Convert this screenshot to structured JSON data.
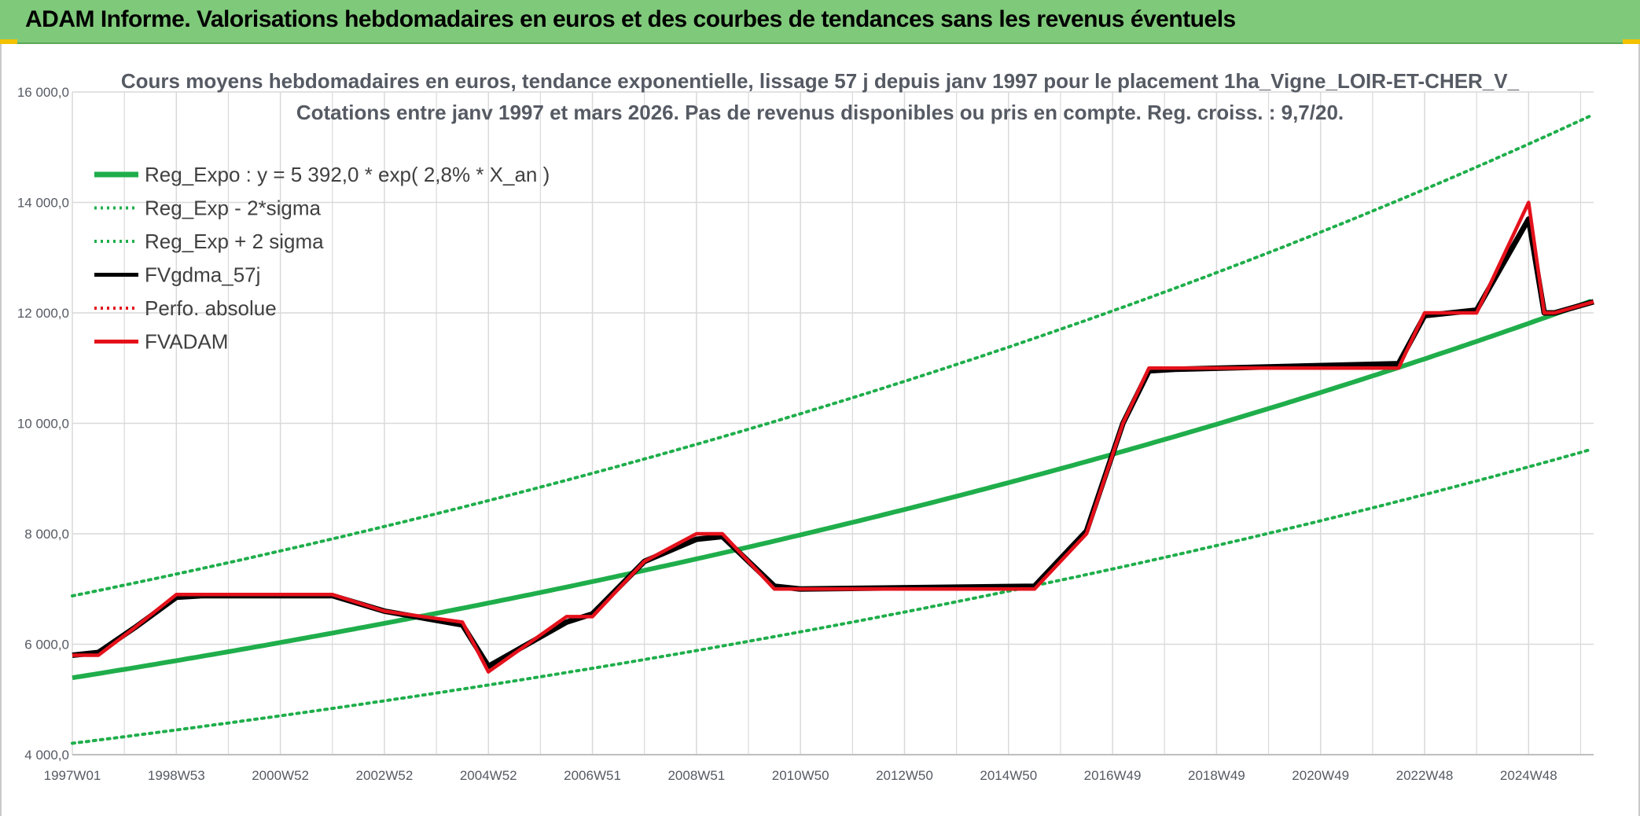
{
  "header": {
    "title": "ADAM Informe. Valorisations hebdomadaires en euros et des courbes de tendances sans les revenus éventuels"
  },
  "colors": {
    "header_bg": "#7fc97a",
    "green": "#1fae4b",
    "black": "#000000",
    "red": "#e4111b",
    "grid": "#d9d9d9",
    "accent": "#f2c100"
  },
  "chart_data": {
    "type": "line",
    "title": [
      "Cours moyens hebdomadaires en euros, tendance exponentielle, lissage 57 j depuis janv 1997 pour le placement 1ha_Vigne_LOIR-ET-CHER_V_",
      "Cotations entre janv 1997 et mars 2026. Pas de revenus disponibles ou pris en compte. Reg. croiss. : 9,7/20."
    ],
    "xlabel": "",
    "ylabel": "",
    "x_range": [
      1997.0,
      2026.25
    ],
    "ylim": [
      4000,
      16000
    ],
    "yticks": [
      4000,
      6000,
      8000,
      10000,
      12000,
      14000,
      16000
    ],
    "ytick_labels": [
      "4 000,0",
      "6 000,0",
      "8 000,0",
      "10 000,0",
      "12 000,0",
      "14 000,0",
      "16 000,0"
    ],
    "xticks": [
      1997.0,
      1999.0,
      2001.0,
      2003.0,
      2005.0,
      2007.0,
      2009.0,
      2011.0,
      2013.0,
      2015.0,
      2017.0,
      2019.0,
      2021.0,
      2023.0,
      2025.0
    ],
    "xtick_labels": [
      "1997W01",
      "1998W53",
      "2000W52",
      "2002W52",
      "2004W52",
      "2006W51",
      "2008W51",
      "2010W50",
      "2012W50",
      "2014W50",
      "2016W49",
      "2018W49",
      "2020W49",
      "2022W48",
      "2024W48"
    ],
    "legend": [
      {
        "key": "reg_expo",
        "label": "Reg_Expo : y = 5 392,0 * exp( 2,8% *  X_an )",
        "color": "#1fae4b",
        "style": "solid"
      },
      {
        "key": "reg_minus",
        "label": "Reg_Exp - 2*sigma",
        "color": "#1fae4b",
        "style": "dotted"
      },
      {
        "key": "reg_plus",
        "label": "Reg_Exp + 2 sigma",
        "color": "#1fae4b",
        "style": "dotted"
      },
      {
        "key": "fvgdma",
        "label": "FVgdma_57j",
        "color": "#000000",
        "style": "solid"
      },
      {
        "key": "perfo",
        "label": "Perfo. absolue",
        "color": "#e4111b",
        "style": "dotted"
      },
      {
        "key": "fvadam",
        "label": "FVADAM",
        "color": "#e4111b",
        "style": "solid"
      }
    ],
    "regression": {
      "a": 5392.0,
      "rate": 0.028,
      "x0": 1997.0,
      "minus_factor": 0.78,
      "plus_factor": 1.275
    },
    "series": [
      {
        "name": "FVgdma_57j",
        "x": [
          1997.0,
          1997.5,
          1998.2,
          1999.0,
          1999.5,
          2000.0,
          2002.0,
          2003.0,
          2004.5,
          2005.0,
          2006.5,
          2007.0,
          2008.0,
          2009.0,
          2009.5,
          2010.5,
          2011.0,
          2015.5,
          2016.5,
          2017.2,
          2017.7,
          2018.2,
          2022.5,
          2023.0,
          2024.0,
          2025.0,
          2025.3,
          2025.5,
          2026.25
        ],
        "y": [
          5800,
          5850,
          6300,
          6850,
          6880,
          6880,
          6880,
          6600,
          6350,
          5600,
          6400,
          6550,
          7500,
          7900,
          7950,
          7050,
          7000,
          7050,
          8050,
          10000,
          10950,
          10980,
          11080,
          11950,
          12050,
          13700,
          12000,
          12000,
          12200
        ]
      },
      {
        "name": "FVADAM",
        "x": [
          1997.0,
          1997.5,
          1998.2,
          1999.0,
          1999.5,
          2000.0,
          2002.0,
          2003.0,
          2004.5,
          2005.0,
          2006.5,
          2007.0,
          2008.0,
          2009.0,
          2009.5,
          2010.5,
          2011.0,
          2015.5,
          2016.5,
          2017.2,
          2017.7,
          2018.2,
          2022.5,
          2023.0,
          2024.0,
          2025.0,
          2025.3,
          2025.5,
          2026.25
        ],
        "y": [
          5800,
          5800,
          6300,
          6900,
          6900,
          6900,
          6900,
          6600,
          6400,
          5500,
          6500,
          6500,
          7500,
          8000,
          8000,
          7000,
          7000,
          7000,
          8000,
          10000,
          11000,
          11000,
          11000,
          12000,
          12000,
          14000,
          12000,
          12000,
          12200
        ]
      }
    ]
  }
}
